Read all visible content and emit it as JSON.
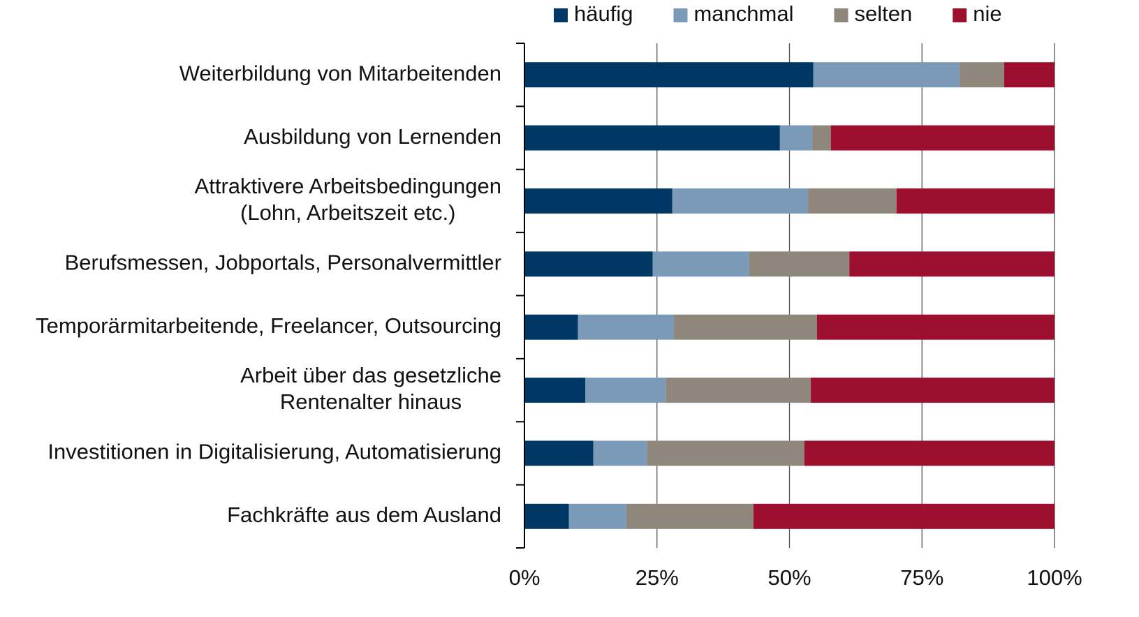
{
  "chart_data": {
    "type": "stacked-bar-horizontal",
    "categories": [
      "Weiterbildung von Mitarbeitenden",
      "Ausbildung von Lernenden",
      "Attraktivere Arbeitsbedingungen\n(Lohn, Arbeitszeit etc.)",
      "Berufsmessen, Jobportals, Personalvermittler",
      "Temporärmitarbeitende, Freelancer, Outsourcing",
      "Arbeit über das gesetzliche\nRentenalter hinaus",
      "Investitionen in Digitalisierung, Automatisierung",
      "Fachkräfte aus dem Ausland"
    ],
    "series": [
      {
        "name": "häufig",
        "color": "#003865",
        "values": [
          54.5,
          48.2,
          27.9,
          24.2,
          10.1,
          11.5,
          13.0,
          8.4
        ]
      },
      {
        "name": "manchmal",
        "color": "#7a9ab8",
        "values": [
          27.6,
          6.1,
          25.6,
          18.2,
          18.1,
          15.2,
          10.1,
          10.8
        ]
      },
      {
        "name": "selten",
        "color": "#8f867c",
        "values": [
          8.4,
          3.5,
          16.7,
          18.9,
          27.0,
          27.3,
          29.7,
          24.0
        ]
      },
      {
        "name": "nie",
        "color": "#9c0f2e",
        "values": [
          9.5,
          42.2,
          29.8,
          38.7,
          44.8,
          46.0,
          47.2,
          56.8
        ]
      }
    ],
    "xlim": [
      0,
      100
    ],
    "xticks": [
      {
        "value": 0,
        "label": "0%"
      },
      {
        "value": 25,
        "label": "25%"
      },
      {
        "value": 50,
        "label": "50%"
      },
      {
        "value": 75,
        "label": "75%"
      },
      {
        "value": 100,
        "label": "100%"
      }
    ],
    "grid": true,
    "legend": "top"
  }
}
